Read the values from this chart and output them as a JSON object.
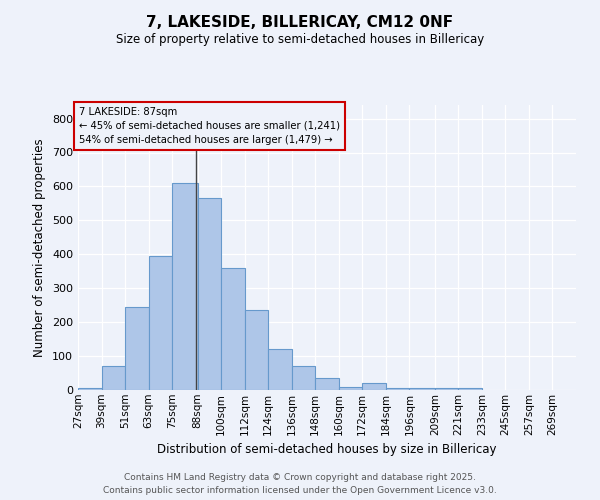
{
  "title_line1": "7, LAKESIDE, BILLERICAY, CM12 0NF",
  "title_line2": "Size of property relative to semi-detached houses in Billericay",
  "xlabel": "Distribution of semi-detached houses by size in Billericay",
  "ylabel": "Number of semi-detached properties",
  "footer_line1": "Contains HM Land Registry data © Crown copyright and database right 2025.",
  "footer_line2": "Contains public sector information licensed under the Open Government Licence v3.0.",
  "property_size": 87,
  "property_label": "7 LAKESIDE: 87sqm",
  "annotation_line1": "← 45% of semi-detached houses are smaller (1,241)",
  "annotation_line2": "54% of semi-detached houses are larger (1,479) →",
  "bar_color": "#aec6e8",
  "bar_edge_color": "#6699cc",
  "annotation_box_edgecolor": "#cc0000",
  "property_line_color": "#444444",
  "bins": [
    27,
    39,
    51,
    63,
    75,
    88,
    100,
    112,
    124,
    136,
    148,
    160,
    172,
    184,
    196,
    209,
    221,
    233,
    245,
    257,
    269,
    281
  ],
  "bin_labels": [
    "27sqm",
    "39sqm",
    "51sqm",
    "63sqm",
    "75sqm",
    "88sqm",
    "100sqm",
    "112sqm",
    "124sqm",
    "136sqm",
    "148sqm",
    "160sqm",
    "172sqm",
    "184sqm",
    "196sqm",
    "209sqm",
    "221sqm",
    "233sqm",
    "245sqm",
    "257sqm",
    "269sqm"
  ],
  "counts": [
    5,
    70,
    245,
    395,
    610,
    565,
    360,
    235,
    120,
    70,
    35,
    10,
    20,
    5,
    5,
    5,
    5,
    0,
    0,
    0,
    0
  ],
  "ylim": [
    0,
    840
  ],
  "yticks": [
    0,
    100,
    200,
    300,
    400,
    500,
    600,
    700,
    800
  ],
  "background_color": "#eef2fa"
}
